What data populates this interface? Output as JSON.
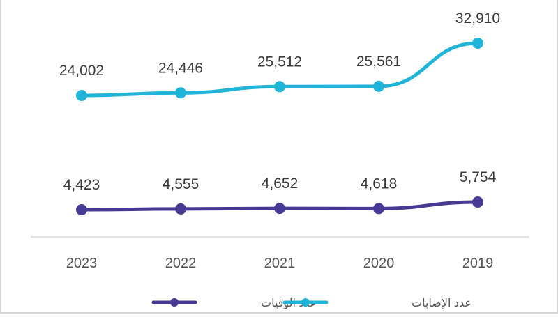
{
  "chart_data": {
    "type": "line",
    "categories": [
      "2023",
      "2022",
      "2021",
      "2020",
      "2019"
    ],
    "series": [
      {
        "name": "عدد الإصابات",
        "color": "#1fb4d8",
        "values": [
          24002,
          24446,
          25512,
          25561,
          32910
        ],
        "labels": [
          "24,002",
          "24,446",
          "25,512",
          "25,561",
          "32,910"
        ]
      },
      {
        "name": "عدد الوفيات",
        "color": "#463a94",
        "values": [
          4423,
          4555,
          4652,
          4618,
          5754
        ],
        "labels": [
          "4,423",
          "4,555",
          "4,652",
          "4,618",
          "5,754"
        ]
      }
    ],
    "legend_position": "bottom",
    "grid": false,
    "x_reversed": true
  }
}
